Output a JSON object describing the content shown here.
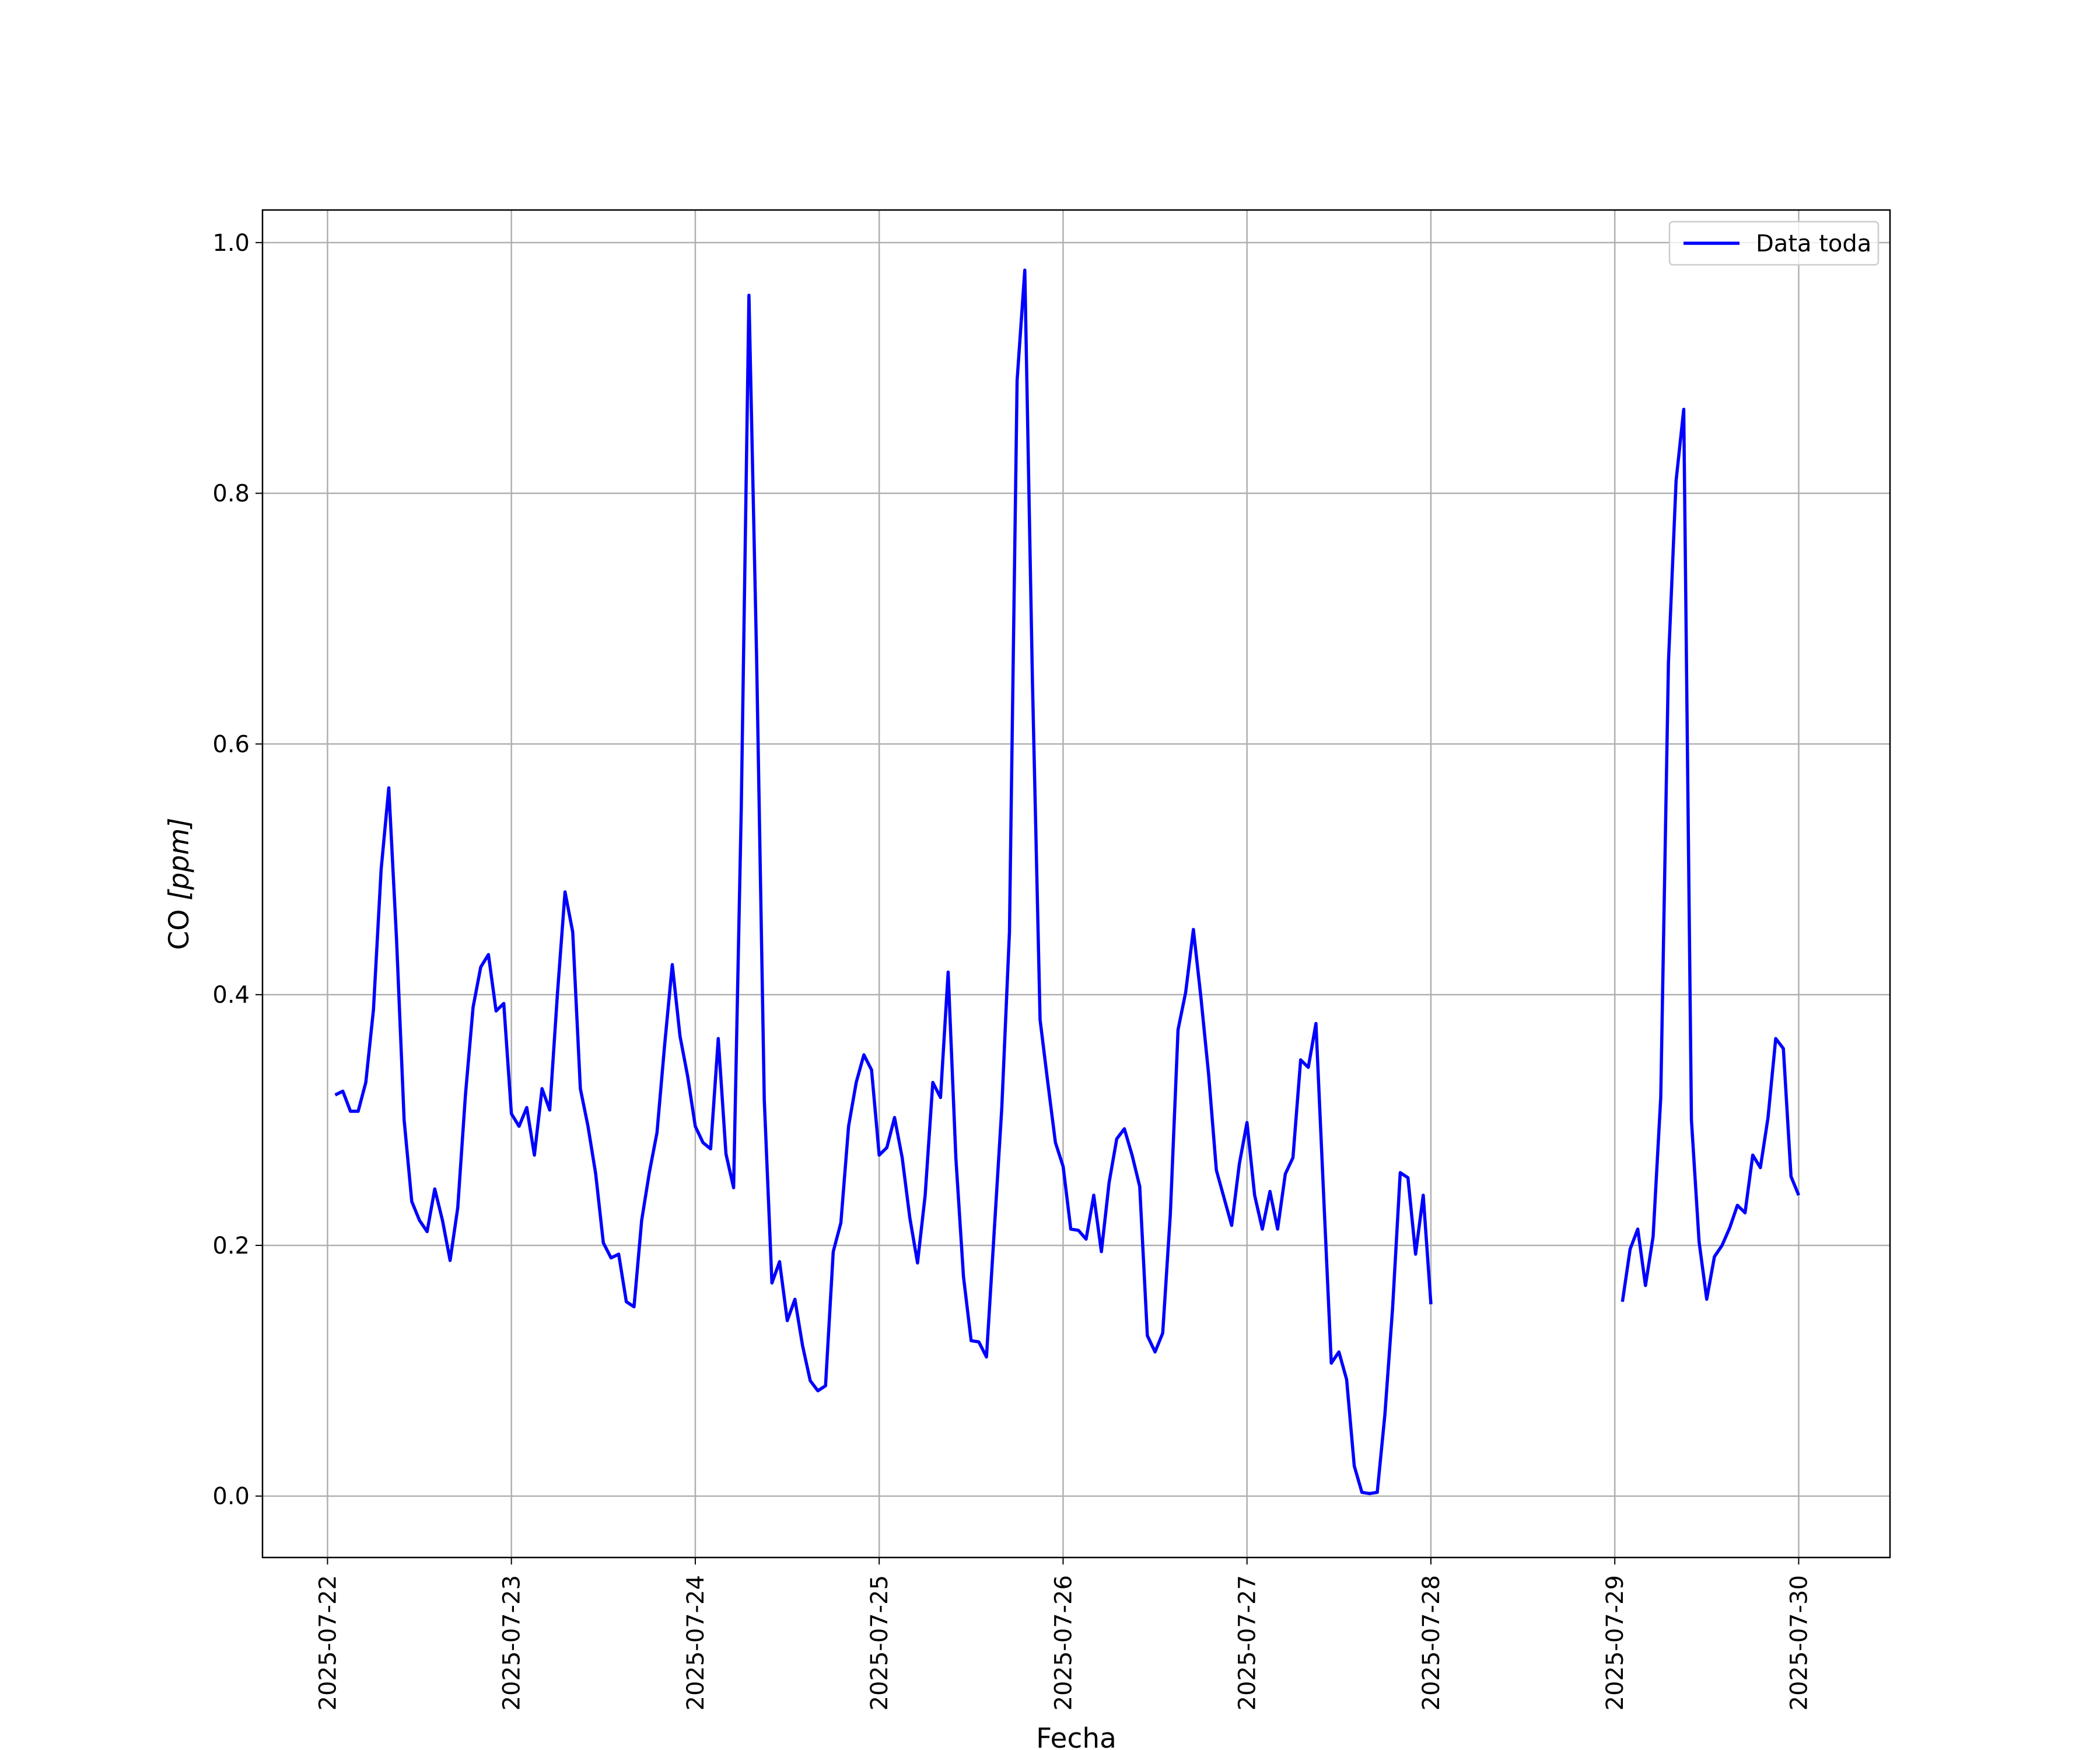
{
  "chart_data": {
    "type": "line",
    "title": "",
    "xlabel": "Fecha",
    "ylabel_main": "CO ",
    "ylabel_unit": "[ppm]",
    "x_ticks": [
      "2025-07-22",
      "2025-07-23",
      "2025-07-24",
      "2025-07-25",
      "2025-07-26",
      "2025-07-27",
      "2025-07-28",
      "2025-07-29",
      "2025-07-30"
    ],
    "y_ticks": [
      "0.0",
      "0.2",
      "0.4",
      "0.6",
      "0.8",
      "1.0"
    ],
    "xlim": [
      "2025-07-21T15:31",
      "2025-07-30T11:55"
    ],
    "ylim": [
      -0.049,
      1.026
    ],
    "grid": true,
    "legend_position": "upper right",
    "colors": {
      "line": "#0000ff",
      "grid": "#b0b0b0"
    },
    "series": [
      {
        "name": "Data toda",
        "segments": [
          [
            [
              "2025-07-22T01:00",
              0.32
            ],
            [
              "2025-07-22T02:00",
              0.323
            ],
            [
              "2025-07-22T03:00",
              0.307
            ],
            [
              "2025-07-22T04:00",
              0.307
            ],
            [
              "2025-07-22T05:00",
              0.33
            ],
            [
              "2025-07-22T06:00",
              0.388
            ],
            [
              "2025-07-22T07:00",
              0.5
            ],
            [
              "2025-07-22T08:00",
              0.565
            ],
            [
              "2025-07-22T09:00",
              0.445
            ],
            [
              "2025-07-22T10:00",
              0.3
            ],
            [
              "2025-07-22T11:00",
              0.235
            ],
            [
              "2025-07-22T12:00",
              0.22
            ],
            [
              "2025-07-22T13:00",
              0.211
            ],
            [
              "2025-07-22T14:00",
              0.245
            ],
            [
              "2025-07-22T15:00",
              0.22
            ],
            [
              "2025-07-22T16:00",
              0.188
            ],
            [
              "2025-07-22T17:00",
              0.23
            ],
            [
              "2025-07-22T18:00",
              0.32
            ],
            [
              "2025-07-22T19:00",
              0.39
            ],
            [
              "2025-07-22T20:00",
              0.422
            ],
            [
              "2025-07-22T21:00",
              0.432
            ],
            [
              "2025-07-22T22:00",
              0.387
            ],
            [
              "2025-07-22T23:00",
              0.393
            ],
            [
              "2025-07-23T00:00",
              0.305
            ],
            [
              "2025-07-23T01:00",
              0.295
            ],
            [
              "2025-07-23T02:00",
              0.31
            ],
            [
              "2025-07-23T03:00",
              0.272
            ],
            [
              "2025-07-23T04:00",
              0.325
            ],
            [
              "2025-07-23T05:00",
              0.308
            ],
            [
              "2025-07-23T06:00",
              0.4
            ],
            [
              "2025-07-23T07:00",
              0.482
            ],
            [
              "2025-07-23T08:00",
              0.45
            ],
            [
              "2025-07-23T09:00",
              0.325
            ],
            [
              "2025-07-23T10:00",
              0.295
            ],
            [
              "2025-07-23T11:00",
              0.257
            ],
            [
              "2025-07-23T12:00",
              0.202
            ],
            [
              "2025-07-23T13:00",
              0.19
            ],
            [
              "2025-07-23T14:00",
              0.193
            ],
            [
              "2025-07-23T15:00",
              0.155
            ],
            [
              "2025-07-23T16:00",
              0.151
            ],
            [
              "2025-07-23T17:00",
              0.22
            ],
            [
              "2025-07-23T18:00",
              0.258
            ],
            [
              "2025-07-23T19:00",
              0.29
            ],
            [
              "2025-07-23T20:00",
              0.36
            ],
            [
              "2025-07-23T21:00",
              0.424
            ],
            [
              "2025-07-23T22:00",
              0.367
            ],
            [
              "2025-07-23T23:00",
              0.335
            ],
            [
              "2025-07-24T00:00",
              0.295
            ],
            [
              "2025-07-24T01:00",
              0.282
            ],
            [
              "2025-07-24T02:00",
              0.277
            ],
            [
              "2025-07-24T03:00",
              0.365
            ],
            [
              "2025-07-24T04:00",
              0.273
            ],
            [
              "2025-07-24T05:00",
              0.246
            ],
            [
              "2025-07-24T06:00",
              0.55
            ],
            [
              "2025-07-24T07:00",
              0.958
            ],
            [
              "2025-07-24T08:00",
              0.67
            ],
            [
              "2025-07-24T09:00",
              0.316
            ],
            [
              "2025-07-24T10:00",
              0.17
            ],
            [
              "2025-07-24T11:00",
              0.187
            ],
            [
              "2025-07-24T12:00",
              0.14
            ],
            [
              "2025-07-24T13:00",
              0.157
            ],
            [
              "2025-07-24T14:00",
              0.12
            ],
            [
              "2025-07-24T15:00",
              0.092
            ],
            [
              "2025-07-24T16:00",
              0.084
            ],
            [
              "2025-07-24T17:00",
              0.088
            ],
            [
              "2025-07-24T18:00",
              0.195
            ],
            [
              "2025-07-24T19:00",
              0.218
            ],
            [
              "2025-07-24T20:00",
              0.295
            ],
            [
              "2025-07-24T21:00",
              0.33
            ],
            [
              "2025-07-24T22:00",
              0.352
            ],
            [
              "2025-07-24T23:00",
              0.34
            ],
            [
              "2025-07-25T00:00",
              0.272
            ],
            [
              "2025-07-25T01:00",
              0.278
            ],
            [
              "2025-07-25T02:00",
              0.302
            ],
            [
              "2025-07-25T03:00",
              0.27
            ],
            [
              "2025-07-25T04:00",
              0.222
            ],
            [
              "2025-07-25T05:00",
              0.186
            ],
            [
              "2025-07-25T06:00",
              0.24
            ],
            [
              "2025-07-25T07:00",
              0.33
            ],
            [
              "2025-07-25T08:00",
              0.318
            ],
            [
              "2025-07-25T09:00",
              0.418
            ],
            [
              "2025-07-25T10:00",
              0.27
            ],
            [
              "2025-07-25T11:00",
              0.175
            ],
            [
              "2025-07-25T12:00",
              0.124
            ],
            [
              "2025-07-25T13:00",
              0.123
            ],
            [
              "2025-07-25T14:00",
              0.111
            ],
            [
              "2025-07-25T15:00",
              0.21
            ],
            [
              "2025-07-25T16:00",
              0.31
            ],
            [
              "2025-07-25T17:00",
              0.45
            ],
            [
              "2025-07-25T18:00",
              0.89
            ],
            [
              "2025-07-25T19:00",
              0.978
            ],
            [
              "2025-07-25T20:00",
              0.65
            ],
            [
              "2025-07-25T21:00",
              0.38
            ],
            [
              "2025-07-25T22:00",
              0.33
            ],
            [
              "2025-07-25T23:00",
              0.282
            ],
            [
              "2025-07-26T00:00",
              0.263
            ],
            [
              "2025-07-26T01:00",
              0.213
            ],
            [
              "2025-07-26T02:00",
              0.212
            ],
            [
              "2025-07-26T03:00",
              0.205
            ],
            [
              "2025-07-26T04:00",
              0.24
            ],
            [
              "2025-07-26T05:00",
              0.195
            ],
            [
              "2025-07-26T06:00",
              0.25
            ],
            [
              "2025-07-26T07:00",
              0.285
            ],
            [
              "2025-07-26T08:00",
              0.293
            ],
            [
              "2025-07-26T09:00",
              0.272
            ],
            [
              "2025-07-26T10:00",
              0.247
            ],
            [
              "2025-07-26T11:00",
              0.128
            ],
            [
              "2025-07-26T12:00",
              0.115
            ],
            [
              "2025-07-26T13:00",
              0.13
            ],
            [
              "2025-07-26T14:00",
              0.225
            ],
            [
              "2025-07-26T15:00",
              0.372
            ],
            [
              "2025-07-26T16:00",
              0.402
            ],
            [
              "2025-07-26T17:00",
              0.452
            ],
            [
              "2025-07-26T18:00",
              0.397
            ],
            [
              "2025-07-26T19:00",
              0.336
            ],
            [
              "2025-07-26T20:00",
              0.26
            ],
            [
              "2025-07-26T21:00",
              0.238
            ],
            [
              "2025-07-26T22:00",
              0.216
            ],
            [
              "2025-07-26T23:00",
              0.265
            ],
            [
              "2025-07-27T00:00",
              0.298
            ],
            [
              "2025-07-27T01:00",
              0.24
            ],
            [
              "2025-07-27T02:00",
              0.213
            ],
            [
              "2025-07-27T03:00",
              0.243
            ],
            [
              "2025-07-27T04:00",
              0.213
            ],
            [
              "2025-07-27T05:00",
              0.257
            ],
            [
              "2025-07-27T06:00",
              0.27
            ],
            [
              "2025-07-27T07:00",
              0.348
            ],
            [
              "2025-07-27T08:00",
              0.342
            ],
            [
              "2025-07-27T09:00",
              0.377
            ],
            [
              "2025-07-27T10:00",
              0.24
            ],
            [
              "2025-07-27T11:00",
              0.106
            ],
            [
              "2025-07-27T12:00",
              0.115
            ],
            [
              "2025-07-27T13:00",
              0.093
            ],
            [
              "2025-07-27T14:00",
              0.024
            ],
            [
              "2025-07-27T15:00",
              0.003
            ],
            [
              "2025-07-27T16:00",
              0.002
            ],
            [
              "2025-07-27T17:00",
              0.003
            ],
            [
              "2025-07-27T18:00",
              0.065
            ],
            [
              "2025-07-27T19:00",
              0.15
            ],
            [
              "2025-07-27T20:00",
              0.258
            ],
            [
              "2025-07-27T21:00",
              0.254
            ],
            [
              "2025-07-27T22:00",
              0.193
            ],
            [
              "2025-07-27T23:00",
              0.24
            ],
            [
              "2025-07-28T00:00",
              0.153
            ]
          ],
          [
            [
              "2025-07-29T01:00",
              0.155
            ],
            [
              "2025-07-29T02:00",
              0.197
            ],
            [
              "2025-07-29T03:00",
              0.213
            ],
            [
              "2025-07-29T04:00",
              0.168
            ],
            [
              "2025-07-29T05:00",
              0.207
            ],
            [
              "2025-07-29T06:00",
              0.318
            ],
            [
              "2025-07-29T07:00",
              0.665
            ],
            [
              "2025-07-29T08:00",
              0.81
            ],
            [
              "2025-07-29T09:00",
              0.867
            ],
            [
              "2025-07-29T10:00",
              0.3
            ],
            [
              "2025-07-29T11:00",
              0.203
            ],
            [
              "2025-07-29T12:00",
              0.157
            ],
            [
              "2025-07-29T13:00",
              0.191
            ],
            [
              "2025-07-29T14:00",
              0.2
            ],
            [
              "2025-07-29T15:00",
              0.214
            ],
            [
              "2025-07-29T16:00",
              0.232
            ],
            [
              "2025-07-29T17:00",
              0.226
            ],
            [
              "2025-07-29T18:00",
              0.272
            ],
            [
              "2025-07-29T19:00",
              0.262
            ],
            [
              "2025-07-29T20:00",
              0.302
            ],
            [
              "2025-07-29T21:00",
              0.365
            ],
            [
              "2025-07-29T22:00",
              0.357
            ],
            [
              "2025-07-29T23:00",
              0.255
            ],
            [
              "2025-07-30T00:00",
              0.24
            ]
          ]
        ]
      }
    ]
  }
}
